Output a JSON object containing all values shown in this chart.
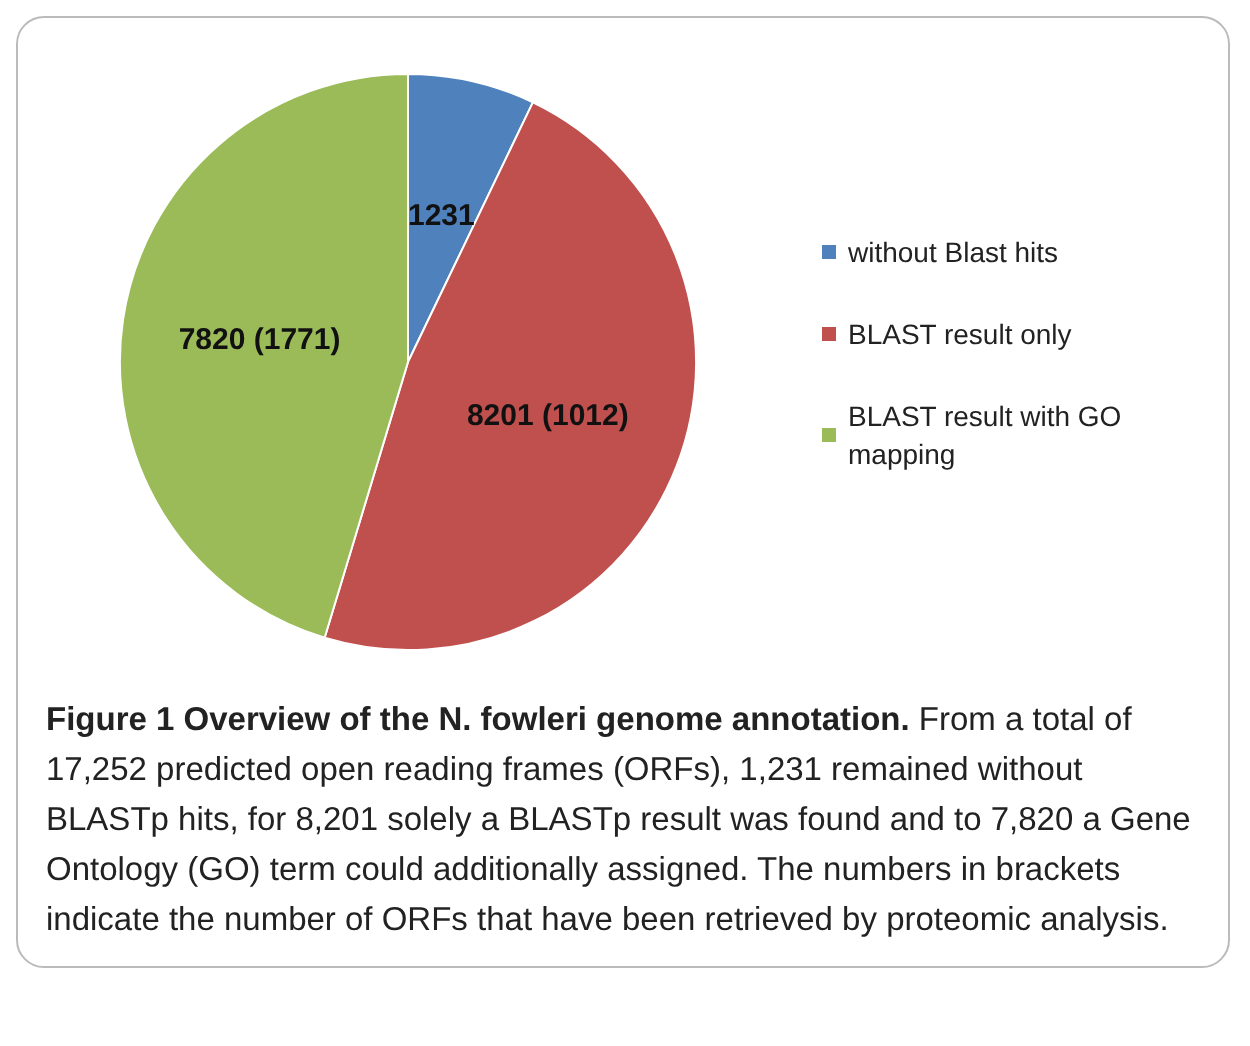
{
  "chart_data": {
    "type": "pie",
    "title": "Figure 1 Overview of the N. fowleri genome annotation.",
    "categories": [
      "without Blast hits",
      "BLAST result only",
      "BLAST result with GO mapping"
    ],
    "values": [
      1231,
      8201,
      7820
    ],
    "value_labels": [
      "1231",
      "8201 (1012)",
      "7820 (1771)"
    ],
    "colors": [
      "#4f81bd",
      "#c0504d",
      "#9bbb59"
    ],
    "legend": "right",
    "annotations": [
      "From a total of 17,252 predicted open reading frames (ORFs), 1,231 remained without BLASTp hits, for 8,201 solely a BLASTp result was found and to 7,820 a Gene Ontology (GO) term could additionally assigned. The numbers in brackets indicate the number of ORFs that have been retrieved by proteomic analysis."
    ]
  }
}
